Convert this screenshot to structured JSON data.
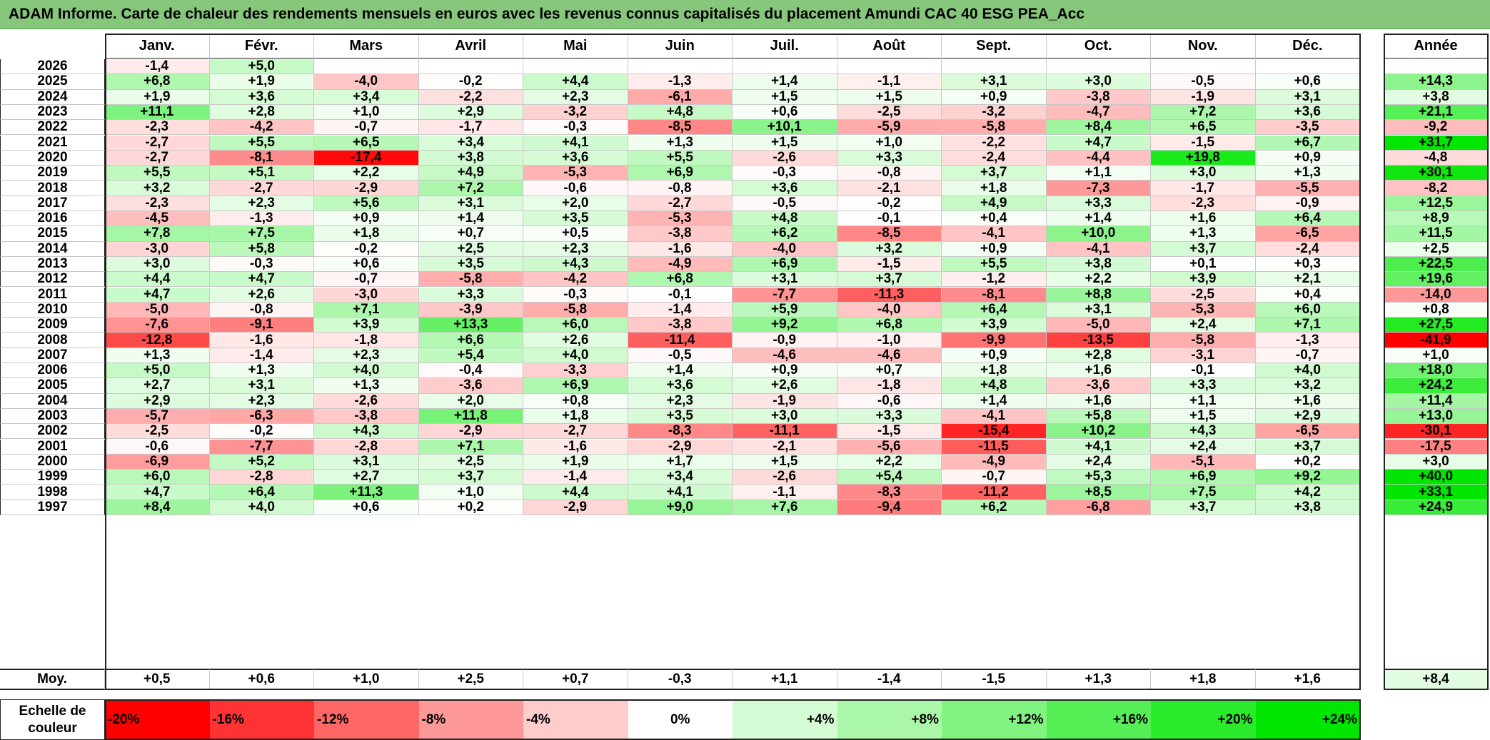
{
  "title": "ADAM Informe. Carte de chaleur des rendements mensuels en euros avec les revenus connus capitalisés du placement Amundi CAC 40 ESG PEA_Acc",
  "chart_data": {
    "type": "heatmap",
    "months": [
      "Janv.",
      "Févr.",
      "Mars",
      "Avril",
      "Mai",
      "Juin",
      "Juil.",
      "Août",
      "Sept.",
      "Oct.",
      "Nov.",
      "Déc."
    ],
    "annual_header": "Année",
    "rows": [
      {
        "year": "2026",
        "values": [
          "-1,4",
          "+5,0",
          "",
          "",
          "",
          "",
          "",
          "",
          "",
          "",
          "",
          ""
        ],
        "annual": ""
      },
      {
        "year": "2025",
        "values": [
          "+6,8",
          "+1,9",
          "-4,0",
          "-0,2",
          "+4,4",
          "-1,3",
          "+1,4",
          "-1,1",
          "+3,1",
          "+3,0",
          "-0,5",
          "+0,6"
        ],
        "annual": "+14,3"
      },
      {
        "year": "2024",
        "values": [
          "+1,9",
          "+3,6",
          "+3,4",
          "-2,2",
          "+2,3",
          "-6,1",
          "+1,5",
          "+1,5",
          "+0,9",
          "-3,8",
          "-1,9",
          "+3,1"
        ],
        "annual": "+3,8"
      },
      {
        "year": "2023",
        "values": [
          "+11,1",
          "+2,8",
          "+1,0",
          "+2,9",
          "-3,2",
          "+4,8",
          "+0,6",
          "-2,5",
          "-3,2",
          "-4,7",
          "+7,2",
          "+3,6"
        ],
        "annual": "+21,1"
      },
      {
        "year": "2022",
        "values": [
          "-2,3",
          "-4,2",
          "-0,7",
          "-1,7",
          "-0,3",
          "-8,5",
          "+10,1",
          "-5,9",
          "-5,8",
          "+8,4",
          "+6,5",
          "-3,5"
        ],
        "annual": "-9,2"
      },
      {
        "year": "2021",
        "values": [
          "-2,7",
          "+5,5",
          "+6,5",
          "+3,4",
          "+4,1",
          "+1,3",
          "+1,5",
          "+1,0",
          "-2,2",
          "+4,7",
          "-1,5",
          "+6,7"
        ],
        "annual": "+31,7"
      },
      {
        "year": "2020",
        "values": [
          "-2,7",
          "-8,1",
          "-17,4",
          "+3,8",
          "+3,6",
          "+5,5",
          "-2,6",
          "+3,3",
          "-2,4",
          "-4,4",
          "+19,8",
          "+0,9"
        ],
        "annual": "-4,8"
      },
      {
        "year": "2019",
        "values": [
          "+5,5",
          "+5,1",
          "+2,2",
          "+4,9",
          "-5,3",
          "+6,9",
          "-0,3",
          "-0,8",
          "+3,7",
          "+1,1",
          "+3,0",
          "+1,3"
        ],
        "annual": "+30,1"
      },
      {
        "year": "2018",
        "values": [
          "+3,2",
          "-2,7",
          "-2,9",
          "+7,2",
          "-0,6",
          "-0,8",
          "+3,6",
          "-2,1",
          "+1,8",
          "-7,3",
          "-1,7",
          "-5,5"
        ],
        "annual": "-8,2"
      },
      {
        "year": "2017",
        "values": [
          "-2,3",
          "+2,3",
          "+5,6",
          "+3,1",
          "+2,0",
          "-2,7",
          "-0,5",
          "-0,2",
          "+4,9",
          "+3,3",
          "-2,3",
          "-0,9"
        ],
        "annual": "+12,5"
      },
      {
        "year": "2016",
        "values": [
          "-4,5",
          "-1,3",
          "+0,9",
          "+1,4",
          "+3,5",
          "-5,3",
          "+4,8",
          "-0,1",
          "+0,4",
          "+1,4",
          "+1,6",
          "+6,4"
        ],
        "annual": "+8,9"
      },
      {
        "year": "2015",
        "values": [
          "+7,8",
          "+7,5",
          "+1,8",
          "+0,7",
          "+0,5",
          "-3,8",
          "+6,2",
          "-8,5",
          "-4,1",
          "+10,0",
          "+1,3",
          "-6,5"
        ],
        "annual": "+11,5"
      },
      {
        "year": "2014",
        "values": [
          "-3,0",
          "+5,8",
          "-0,2",
          "+2,5",
          "+2,3",
          "-1,6",
          "-4,0",
          "+3,2",
          "+0,9",
          "-4,1",
          "+3,7",
          "-2,4"
        ],
        "annual": "+2,5"
      },
      {
        "year": "2013",
        "values": [
          "+3,0",
          "-0,3",
          "+0,6",
          "+3,5",
          "+4,3",
          "-4,9",
          "+6,9",
          "-1,5",
          "+5,5",
          "+3,8",
          "+0,1",
          "+0,3"
        ],
        "annual": "+22,5"
      },
      {
        "year": "2012",
        "values": [
          "+4,4",
          "+4,7",
          "-0,7",
          "-5,8",
          "-4,2",
          "+6,8",
          "+3,1",
          "+3,7",
          "-1,2",
          "+2,2",
          "+3,9",
          "+2,1"
        ],
        "annual": "+19,6"
      },
      {
        "year": "2011",
        "values": [
          "+4,7",
          "+2,6",
          "-3,0",
          "+3,3",
          "-0,3",
          "-0,1",
          "-7,7",
          "-11,3",
          "-8,1",
          "+8,8",
          "-2,5",
          "+0,4"
        ],
        "annual": "-14,0"
      },
      {
        "year": "2010",
        "values": [
          "-5,0",
          "-0,8",
          "+7,1",
          "-3,9",
          "-5,8",
          "-1,4",
          "+5,9",
          "-4,0",
          "+6,4",
          "+3,1",
          "-5,3",
          "+6,0"
        ],
        "annual": "+0,8"
      },
      {
        "year": "2009",
        "values": [
          "-7,6",
          "-9,1",
          "+3,9",
          "+13,3",
          "+6,0",
          "-3,8",
          "+9,2",
          "+6,8",
          "+3,9",
          "-5,0",
          "+2,4",
          "+7,1"
        ],
        "annual": "+27,5"
      },
      {
        "year": "2008",
        "values": [
          "-12,8",
          "-1,6",
          "-1,8",
          "+6,6",
          "+2,6",
          "-11,4",
          "-0,9",
          "-1,0",
          "-9,9",
          "-13,5",
          "-5,8",
          "-1,3"
        ],
        "annual": "-41,9"
      },
      {
        "year": "2007",
        "values": [
          "+1,3",
          "-1,4",
          "+2,3",
          "+5,4",
          "+4,0",
          "-0,5",
          "-4,6",
          "-4,6",
          "+0,9",
          "+2,8",
          "-3,1",
          "-0,7"
        ],
        "annual": "+1,0"
      },
      {
        "year": "2006",
        "values": [
          "+5,0",
          "+1,3",
          "+4,0",
          "-0,4",
          "-3,3",
          "+1,4",
          "+0,9",
          "+0,7",
          "+1,8",
          "+1,6",
          "-0,1",
          "+4,0"
        ],
        "annual": "+18,0"
      },
      {
        "year": "2005",
        "values": [
          "+2,7",
          "+3,1",
          "+1,3",
          "-3,6",
          "+6,9",
          "+3,6",
          "+2,6",
          "-1,8",
          "+4,8",
          "-3,6",
          "+3,3",
          "+3,2"
        ],
        "annual": "+24,2"
      },
      {
        "year": "2004",
        "values": [
          "+2,9",
          "+2,3",
          "-2,6",
          "+2,0",
          "+0,8",
          "+2,3",
          "-1,9",
          "-0,6",
          "+1,4",
          "+1,6",
          "+1,1",
          "+1,6"
        ],
        "annual": "+11,4"
      },
      {
        "year": "2003",
        "values": [
          "-5,7",
          "-6,3",
          "-3,8",
          "+11,8",
          "+1,8",
          "+3,5",
          "+3,0",
          "+3,3",
          "-4,1",
          "+5,8",
          "+1,5",
          "+2,9"
        ],
        "annual": "+13,0"
      },
      {
        "year": "2002",
        "values": [
          "-2,5",
          "-0,2",
          "+4,3",
          "-2,9",
          "-2,7",
          "-8,3",
          "-11,1",
          "-1,5",
          "-15,4",
          "+10,2",
          "+4,3",
          "-6,5"
        ],
        "annual": "-30,1"
      },
      {
        "year": "2001",
        "values": [
          "-0,6",
          "-7,7",
          "-2,8",
          "+7,1",
          "-1,6",
          "-2,9",
          "-2,1",
          "-5,6",
          "-11,5",
          "+4,1",
          "+2,4",
          "+3,7"
        ],
        "annual": "-17,5"
      },
      {
        "year": "2000",
        "values": [
          "-6,9",
          "+5,2",
          "+3,1",
          "+2,5",
          "+1,9",
          "+1,7",
          "+1,5",
          "+2,2",
          "-4,9",
          "+2,4",
          "-5,1",
          "+0,2"
        ],
        "annual": "+3,0"
      },
      {
        "year": "1999",
        "values": [
          "+6,0",
          "-2,8",
          "+2,7",
          "+3,7",
          "-1,4",
          "+3,4",
          "-2,6",
          "+5,4",
          "-0,7",
          "+5,3",
          "+6,9",
          "+9,2"
        ],
        "annual": "+40,0"
      },
      {
        "year": "1998",
        "values": [
          "+4,7",
          "+6,4",
          "+11,3",
          "+1,0",
          "+4,4",
          "+4,1",
          "-1,1",
          "-8,3",
          "-11,2",
          "+8,5",
          "+7,5",
          "+4,2"
        ],
        "annual": "+33,1"
      },
      {
        "year": "1997",
        "values": [
          "+8,4",
          "+4,0",
          "+0,6",
          "+0,2",
          "-2,9",
          "+9,0",
          "+7,6",
          "-9,4",
          "+6,2",
          "-6,8",
          "+3,7",
          "+3,8"
        ],
        "annual": "+24,9"
      }
    ],
    "average": {
      "label": "Moy.",
      "values": [
        "+0,5",
        "+0,6",
        "+1,0",
        "+2,5",
        "+0,7",
        "-0,3",
        "+1,1",
        "-1,4",
        "-1,5",
        "+1,3",
        "+1,8",
        "+1,6"
      ],
      "annual": "+8,4"
    },
    "legend": {
      "label": "Echelle de couleur",
      "stops": [
        "-20%",
        "-16%",
        "-12%",
        "-8%",
        "-4%",
        "0%",
        "+4%",
        "+8%",
        "+12%",
        "+16%",
        "+20%",
        "+24%"
      ],
      "stop_values": [
        -20,
        -16,
        -12,
        -8,
        -4,
        0,
        4,
        8,
        12,
        16,
        20,
        24
      ]
    },
    "colors": {
      "negative": "#ff0000",
      "neutral": "#ffffff",
      "positive": "#00e600"
    }
  }
}
